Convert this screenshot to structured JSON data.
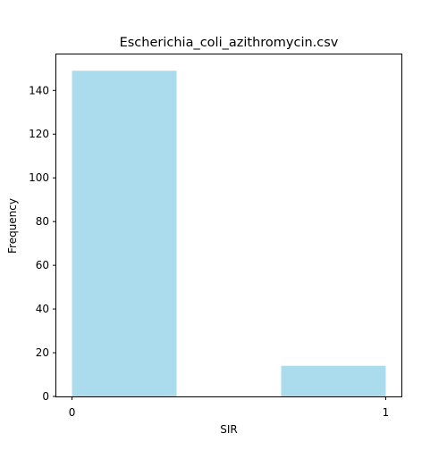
{
  "chart_data": {
    "type": "bar",
    "title": "Escherichia_coli_azithromycin.csv",
    "xlabel": "SIR",
    "ylabel": "Frequency",
    "bins": [
      {
        "x_start": 0,
        "x_end": 0.3333,
        "value": 149
      },
      {
        "x_start": 0.6667,
        "x_end": 1,
        "value": 14
      }
    ],
    "x_ticks": [
      0,
      1
    ],
    "y_ticks": [
      0,
      20,
      40,
      60,
      80,
      100,
      120,
      140
    ],
    "xlim": [
      -0.05,
      1.05
    ],
    "ylim": [
      0,
      156.45
    ],
    "bar_color": "#aadcee",
    "grid": false,
    "legend": "none"
  }
}
